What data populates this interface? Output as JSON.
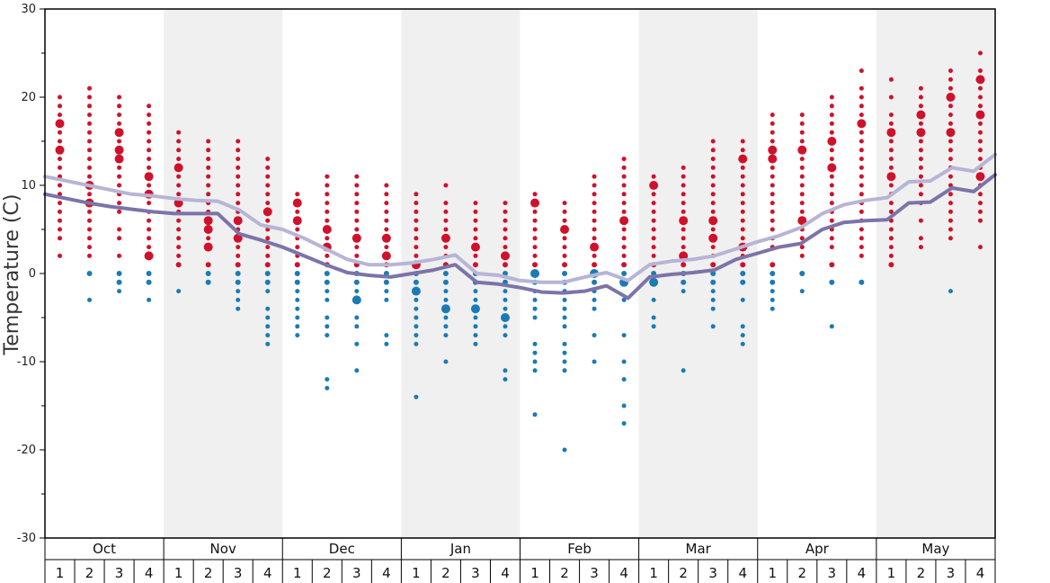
{
  "chart_data": {
    "type": "scatter",
    "title": "",
    "ylabel": "Temperature (C)",
    "ylim": [
      -30,
      30
    ],
    "yticks": [
      -30,
      -20,
      -10,
      0,
      10,
      20,
      30
    ],
    "months": [
      "Oct",
      "Nov",
      "Dec",
      "Jan",
      "Feb",
      "Mar",
      "Apr",
      "May"
    ],
    "weeks": [
      "1",
      "2",
      "3",
      "4"
    ],
    "colors": {
      "warm": "#d0112b",
      "cold": "#1a7bb5",
      "upper_line": "#b7b5d6",
      "lower_line": "#7c74a8",
      "band": "#f0f0f0",
      "frame": "#000000"
    },
    "series": [
      {
        "name": "",
        "values": [
          11.0,
          10.5,
          10.0,
          9.5,
          9.0,
          8.8,
          8.5,
          8.3,
          8.2,
          7.2,
          5.5,
          5.0,
          4.0,
          2.8,
          1.6,
          1.0,
          1.0,
          1.2,
          1.6,
          2.1,
          0.0,
          -0.2,
          -0.8,
          -1.0,
          -1.0,
          -0.4,
          0.1,
          -0.8,
          1.0,
          1.4,
          1.6,
          2.0,
          2.8,
          3.6,
          4.3,
          5.2,
          6.8,
          7.8,
          8.3,
          8.6,
          10.4,
          10.5,
          12.0,
          11.6,
          13.5
        ]
      },
      {
        "name": "",
        "values": [
          9.0,
          8.5,
          8.0,
          7.6,
          7.3,
          7.0,
          6.8,
          6.8,
          6.8,
          4.5,
          3.8,
          3.0,
          2.0,
          1.0,
          0.1,
          -0.2,
          -0.4,
          0.0,
          0.4,
          1.0,
          -1.0,
          -1.2,
          -1.6,
          -2.1,
          -2.2,
          -2.0,
          -1.4,
          -2.8,
          -0.4,
          -0.1,
          0.1,
          0.4,
          1.6,
          2.3,
          3.0,
          3.4,
          5.0,
          5.8,
          6.0,
          6.1,
          8.0,
          8.1,
          9.7,
          9.3,
          11.2
        ]
      }
    ],
    "points": [
      {
        "week": 0,
        "temps": [
          20,
          19,
          18,
          17,
          16,
          15,
          14,
          13,
          12,
          11,
          10,
          9,
          8,
          7,
          6,
          5,
          4,
          2
        ],
        "big": [
          17,
          14
        ]
      },
      {
        "week": 1,
        "temps": [
          21,
          20,
          19,
          18,
          17,
          16,
          15,
          14,
          13,
          12,
          11,
          10,
          9,
          8,
          7,
          6,
          5,
          4,
          3,
          2,
          0,
          -3
        ],
        "big": [
          10,
          8
        ]
      },
      {
        "week": 2,
        "temps": [
          20,
          19,
          18,
          17,
          16,
          15,
          14,
          13,
          12,
          11,
          10,
          9,
          8,
          7,
          5,
          4,
          2,
          0,
          -1,
          -2
        ],
        "big": [
          13,
          16,
          14
        ]
      },
      {
        "week": 3,
        "temps": [
          19,
          18,
          17,
          16,
          15,
          14,
          13,
          12,
          11,
          10,
          9,
          8,
          7,
          6,
          5,
          4,
          3,
          2,
          0,
          -1,
          -3
        ],
        "big": [
          9,
          11,
          2
        ]
      },
      {
        "week": 4,
        "temps": [
          16,
          15,
          14,
          13,
          12,
          11,
          10,
          9,
          8,
          7,
          6,
          5,
          4,
          3,
          2,
          1,
          -2
        ],
        "big": [
          12,
          8
        ]
      },
      {
        "week": 5,
        "temps": [
          15,
          14,
          13,
          12,
          11,
          10,
          9,
          8,
          7,
          6,
          5,
          4,
          3,
          1,
          0,
          -1
        ],
        "big": [
          6,
          5,
          3
        ]
      },
      {
        "week": 6,
        "temps": [
          15,
          14,
          13,
          12,
          11,
          10,
          9,
          8,
          7,
          6,
          5,
          4,
          3,
          2,
          1,
          0,
          -1,
          -2,
          -3,
          -4
        ],
        "big": [
          6,
          4
        ]
      },
      {
        "week": 7,
        "temps": [
          13,
          12,
          11,
          10,
          9,
          8,
          7,
          6,
          5,
          4,
          3,
          2,
          1,
          0,
          -1,
          -2,
          -4,
          -5,
          -6,
          -7,
          -8
        ],
        "big": [
          7
        ]
      },
      {
        "week": 8,
        "temps": [
          9,
          8,
          7,
          6,
          5,
          4,
          3,
          2,
          1,
          0,
          -1,
          -2,
          -3,
          -4,
          -5,
          -6,
          -7
        ],
        "big": [
          8,
          6
        ]
      },
      {
        "week": 9,
        "temps": [
          11,
          10,
          9,
          8,
          7,
          6,
          5,
          4,
          3,
          2,
          1,
          0,
          -1,
          -2,
          -3,
          -5,
          -6,
          -7,
          -12,
          -13
        ],
        "big": [
          5,
          3
        ]
      },
      {
        "week": 10,
        "temps": [
          11,
          10,
          9,
          8,
          7,
          6,
          5,
          4,
          3,
          2,
          1,
          0,
          -1,
          -2,
          -3,
          -5,
          -6,
          -8,
          -11
        ],
        "big": [
          4,
          -3
        ]
      },
      {
        "week": 11,
        "temps": [
          10,
          9,
          8,
          7,
          6,
          5,
          4,
          3,
          2,
          1,
          0,
          -1,
          -2,
          -3,
          -7,
          -8
        ],
        "big": [
          4,
          2
        ]
      },
      {
        "week": 12,
        "temps": [
          9,
          8,
          7,
          6,
          5,
          4,
          3,
          2,
          1,
          0,
          -1,
          -2,
          -3,
          -4,
          -5,
          -6,
          -7,
          -8,
          -14
        ],
        "big": [
          1,
          -2
        ]
      },
      {
        "week": 13,
        "temps": [
          10,
          8,
          7,
          6,
          5,
          4,
          3,
          2,
          1,
          0,
          -1,
          -2,
          -3,
          -4,
          -5,
          -6,
          -7,
          -10
        ],
        "big": [
          -4,
          4
        ]
      },
      {
        "week": 14,
        "temps": [
          8,
          7,
          6,
          5,
          4,
          3,
          2,
          1,
          0,
          -1,
          -2,
          -3,
          -4,
          -5,
          -6,
          -7,
          -8
        ],
        "big": [
          3,
          -4
        ]
      },
      {
        "week": 15,
        "temps": [
          8,
          7,
          6,
          5,
          4,
          3,
          2,
          1,
          0,
          -1,
          -2,
          -3,
          -4,
          -5,
          -6,
          -7,
          -11,
          -12
        ],
        "big": [
          2,
          -5
        ]
      },
      {
        "week": 16,
        "temps": [
          9,
          8,
          7,
          6,
          5,
          4,
          3,
          2,
          1,
          0,
          -1,
          -2,
          -3,
          -4,
          -5,
          -8,
          -9,
          -10,
          -11,
          -16
        ],
        "big": [
          8,
          0
        ]
      },
      {
        "week": 17,
        "temps": [
          8,
          7,
          6,
          5,
          4,
          3,
          2,
          1,
          0,
          -1,
          -2,
          -3,
          -4,
          -5,
          -6,
          -8,
          -9,
          -10,
          -11,
          -20
        ],
        "big": [
          5
        ]
      },
      {
        "week": 18,
        "temps": [
          11,
          10,
          9,
          8,
          7,
          6,
          5,
          4,
          3,
          2,
          1,
          0,
          -1,
          -2,
          -3,
          -4,
          -7,
          -10
        ],
        "big": [
          3,
          0
        ]
      },
      {
        "week": 19,
        "temps": [
          13,
          12,
          11,
          10,
          9,
          8,
          7,
          6,
          5,
          4,
          3,
          2,
          1,
          0,
          -1,
          -3,
          -7,
          -10,
          -12,
          -15,
          -17
        ],
        "big": [
          6,
          -1
        ]
      },
      {
        "week": 20,
        "temps": [
          11,
          10,
          9,
          8,
          7,
          6,
          5,
          4,
          3,
          2,
          1,
          0,
          -1,
          -3,
          -5,
          -6
        ],
        "big": [
          10,
          -1
        ]
      },
      {
        "week": 21,
        "temps": [
          12,
          11,
          10,
          9,
          8,
          7,
          6,
          5,
          4,
          3,
          2,
          1,
          0,
          -1,
          -2,
          -11
        ],
        "big": [
          6,
          2
        ]
      },
      {
        "week": 22,
        "temps": [
          15,
          14,
          13,
          12,
          11,
          10,
          9,
          8,
          7,
          6,
          5,
          4,
          3,
          2,
          1,
          0,
          -1,
          -2,
          -3,
          -4,
          -6
        ],
        "big": [
          6,
          4
        ]
      },
      {
        "week": 23,
        "temps": [
          15,
          14,
          13,
          12,
          11,
          10,
          9,
          8,
          7,
          6,
          5,
          4,
          3,
          2,
          1,
          0,
          -1,
          -3,
          -6,
          -7,
          -8
        ],
        "big": [
          13,
          3
        ]
      },
      {
        "week": 24,
        "temps": [
          18,
          17,
          16,
          15,
          14,
          13,
          12,
          11,
          10,
          9,
          8,
          7,
          6,
          5,
          4,
          3,
          1,
          0,
          -1,
          -2,
          -3,
          -4
        ],
        "big": [
          14,
          13
        ]
      },
      {
        "week": 25,
        "temps": [
          18,
          17,
          16,
          15,
          14,
          13,
          12,
          11,
          10,
          9,
          8,
          7,
          6,
          5,
          4,
          3,
          2,
          0,
          -2
        ],
        "big": [
          6,
          14
        ]
      },
      {
        "week": 26,
        "temps": [
          20,
          19,
          18,
          17,
          16,
          15,
          14,
          13,
          12,
          11,
          10,
          9,
          8,
          7,
          6,
          5,
          4,
          3,
          1,
          -1,
          -6
        ],
        "big": [
          15,
          12
        ]
      },
      {
        "week": 27,
        "temps": [
          23,
          21,
          20,
          19,
          18,
          17,
          16,
          15,
          14,
          13,
          12,
          11,
          10,
          9,
          8,
          7,
          6,
          5,
          4,
          3,
          2,
          -1
        ],
        "big": [
          17
        ]
      },
      {
        "week": 28,
        "temps": [
          22,
          20,
          18,
          17,
          16,
          15,
          14,
          13,
          12,
          11,
          10,
          9,
          8,
          7,
          6,
          5,
          4,
          3,
          2,
          1
        ],
        "big": [
          16,
          11
        ]
      },
      {
        "week": 29,
        "temps": [
          21,
          20,
          19,
          18,
          17,
          16,
          15,
          14,
          13,
          12,
          11,
          10,
          9,
          8,
          6,
          4,
          3
        ],
        "big": [
          18,
          16
        ]
      },
      {
        "week": 30,
        "temps": [
          23,
          22,
          21,
          20,
          19,
          18,
          17,
          16,
          15,
          14,
          13,
          12,
          11,
          10,
          9,
          8,
          7,
          6,
          5,
          4,
          -2
        ],
        "big": [
          20,
          16
        ]
      },
      {
        "week": 31,
        "temps": [
          25,
          23,
          22,
          21,
          20,
          19,
          18,
          17,
          16,
          15,
          14,
          13,
          12,
          11,
          10,
          9,
          8,
          7,
          6,
          3
        ],
        "big": [
          22,
          18,
          11
        ]
      }
    ]
  }
}
